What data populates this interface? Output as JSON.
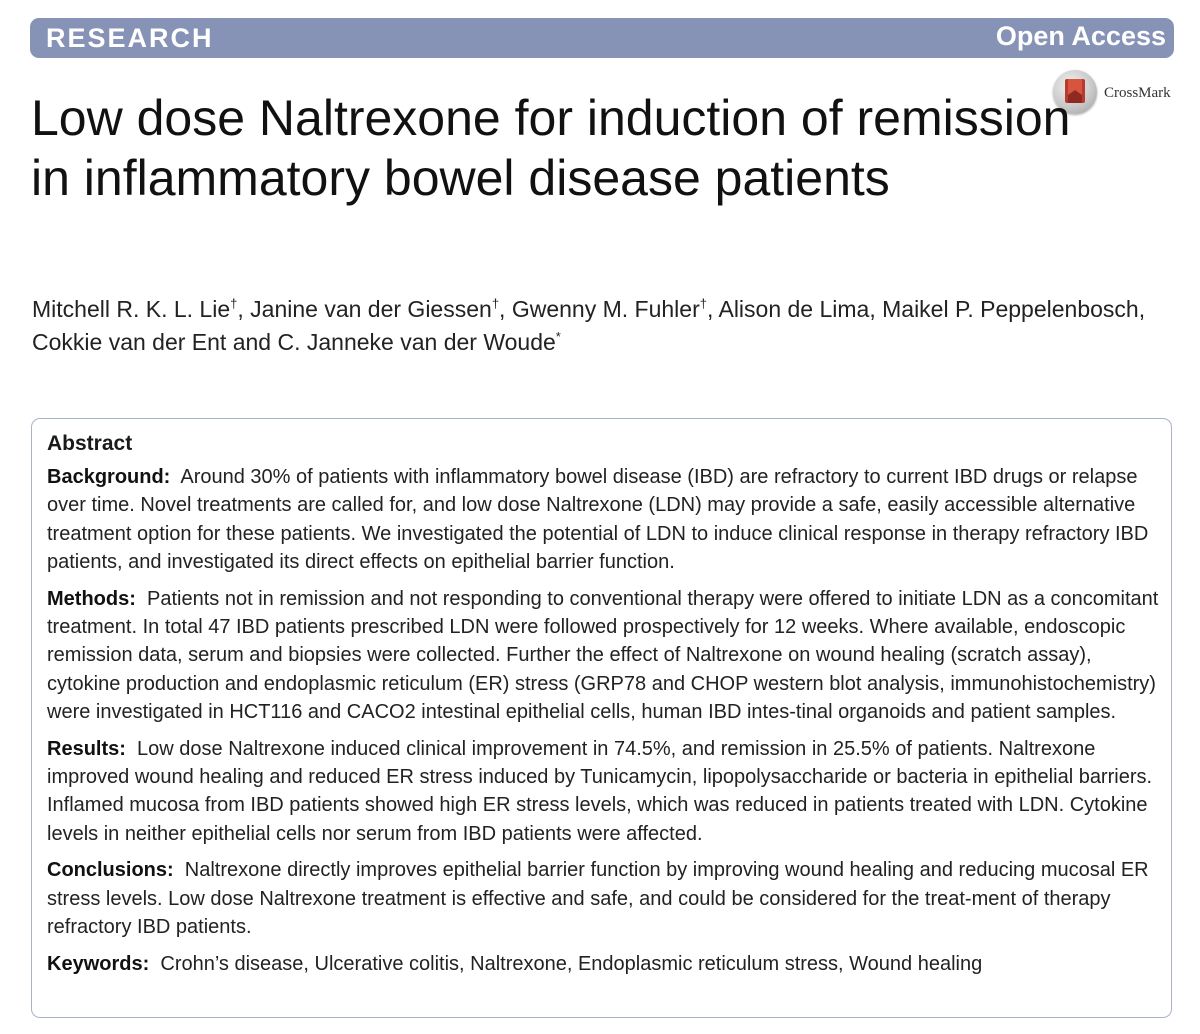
{
  "banner": {
    "section": "RESEARCH",
    "access": "Open Access",
    "accent_color": "#8793b6"
  },
  "crossmark": {
    "label": "CrossMark",
    "icon": "crossmark-icon"
  },
  "title": "Low dose Naltrexone for induction of remission in inflammatory bowel disease patients",
  "authors": [
    {
      "name": "Mitchell R. K. L. Lie",
      "mark": "†",
      "sep": ", "
    },
    {
      "name": "Janine van der Giessen",
      "mark": "†",
      "sep": ", "
    },
    {
      "name": "Gwenny M. Fuhler",
      "mark": "†",
      "sep": ", "
    },
    {
      "name": "Alison de Lima",
      "mark": "",
      "sep": ", "
    },
    {
      "name": "Maikel P. Peppelenbosch",
      "mark": "",
      "sep": ", "
    },
    {
      "name": "Cokkie van der Ent",
      "mark": "",
      "sep": " and "
    },
    {
      "name": "C. Janneke van der Woude",
      "mark": "*",
      "sep": ""
    }
  ],
  "abstract": {
    "heading": "Abstract",
    "sections": [
      {
        "label": "Background:",
        "text": "Around 30% of patients with inflammatory bowel disease (IBD) are refractory to current IBD drugs or relapse over time. Novel treatments are called for, and low dose Naltrexone (LDN) may provide a safe, easily accessible alternative treatment option for these patients. We investigated the potential of LDN to induce clinical response in therapy refractory IBD patients, and investigated its direct effects on epithelial barrier function."
      },
      {
        "label": "Methods:",
        "text": "Patients not in remission and not responding to conventional therapy were offered to initiate LDN as a concomitant treatment. In total 47 IBD patients prescribed LDN were followed prospectively for 12 weeks. Where available, endoscopic remission data, serum and biopsies were collected. Further the effect of Naltrexone on wound healing (scratch assay), cytokine production and endoplasmic reticulum (ER) stress (GRP78 and CHOP western blot analysis, immunohistochemistry) were investigated in HCT116 and CACO2 intestinal epithelial cells, human IBD intes-tinal organoids and patient samples."
      },
      {
        "label": "Results:",
        "text": "Low dose Naltrexone induced clinical improvement in 74.5%, and remission in 25.5% of patients. Naltrexone improved wound healing and reduced ER stress induced by Tunicamycin, lipopolysaccharide or bacteria in epithelial barriers. Inflamed mucosa from IBD patients showed high ER stress levels, which was reduced in patients treated with LDN. Cytokine levels in neither epithelial cells nor serum from IBD patients were affected."
      },
      {
        "label": "Conclusions:",
        "text": "Naltrexone directly improves epithelial barrier function by improving wound healing and reducing mucosal ER stress levels. Low dose Naltrexone treatment is effective and safe, and could be considered for the treat-ment of therapy refractory IBD patients."
      },
      {
        "label": "Keywords:",
        "text": "Crohn’s disease, Ulcerative colitis, Naltrexone, Endoplasmic reticulum stress, Wound healing"
      }
    ]
  }
}
